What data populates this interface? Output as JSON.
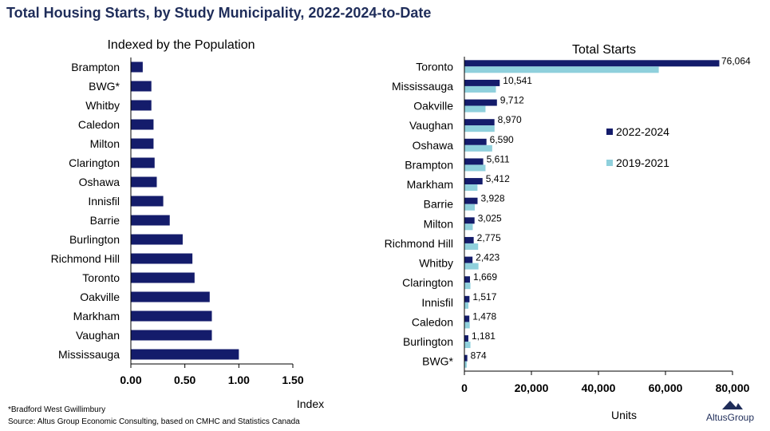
{
  "title": "Total Housing Starts, by Study Municipality, 2022-2024-to-Date",
  "footnote": "*Bradford West Gwillimbury",
  "source": "Source:  Altus Group Economic Consulting, based on CMHC and Statistics Canada",
  "logo_text": "AltusGroup",
  "colors": {
    "dark": "#141c6b",
    "light": "#8fd0dc",
    "title": "#1f2d5a"
  },
  "chart_data": [
    {
      "type": "bar",
      "orientation": "horizontal",
      "title": "Indexed by the Population",
      "xlabel": "Index",
      "ylabel": "",
      "xlim": [
        0,
        1.5
      ],
      "xticks": [
        "0.00",
        "0.50",
        "1.00",
        "1.50"
      ],
      "categories": [
        "Brampton",
        "BWG*",
        "Whitby",
        "Caledon",
        "Milton",
        "Clarington",
        "Oshawa",
        "Innisfil",
        "Barrie",
        "Burlington",
        "Richmond Hill",
        "Toronto",
        "Oakville",
        "Markham",
        "Vaughan",
        "Mississauga"
      ],
      "values": [
        0.11,
        0.19,
        0.19,
        0.21,
        0.21,
        0.22,
        0.24,
        0.3,
        0.36,
        0.48,
        0.57,
        0.59,
        0.73,
        0.75,
        0.75,
        1.0
      ],
      "grid": false
    },
    {
      "type": "bar",
      "orientation": "horizontal",
      "title": "Total Starts",
      "xlabel": "Units",
      "ylabel": "",
      "xlim": [
        0,
        80000
      ],
      "xticks": [
        "0",
        "20,000",
        "40,000",
        "60,000",
        "80,000"
      ],
      "legend": "right",
      "categories": [
        "Toronto",
        "Mississauga",
        "Oakville",
        "Vaughan",
        "Oshawa",
        "Brampton",
        "Markham",
        "Barrie",
        "Milton",
        "Richmond Hill",
        "Whitby",
        "Clarington",
        "Innisfil",
        "Caledon",
        "Burlington",
        "BWG*"
      ],
      "series": [
        {
          "name": "2022-2024",
          "values": [
            76064,
            10541,
            9712,
            8970,
            6590,
            5611,
            5412,
            3928,
            3025,
            2775,
            2423,
            1669,
            1517,
            1478,
            1181,
            874
          ],
          "labels": [
            "76,064",
            "10,541",
            "9,712",
            "8,970",
            "6,590",
            "5,611",
            "5,412",
            "3,928",
            "3,025",
            "2,775",
            "2,423",
            "1,669",
            "1,517",
            "1,478",
            "1,181",
            "874"
          ]
        },
        {
          "name": "2019-2021",
          "values": [
            58000,
            9400,
            6300,
            9000,
            8300,
            6300,
            3900,
            3100,
            2500,
            4100,
            4200,
            1800,
            1200,
            1600,
            1800,
            700
          ]
        }
      ],
      "grid": false
    }
  ]
}
